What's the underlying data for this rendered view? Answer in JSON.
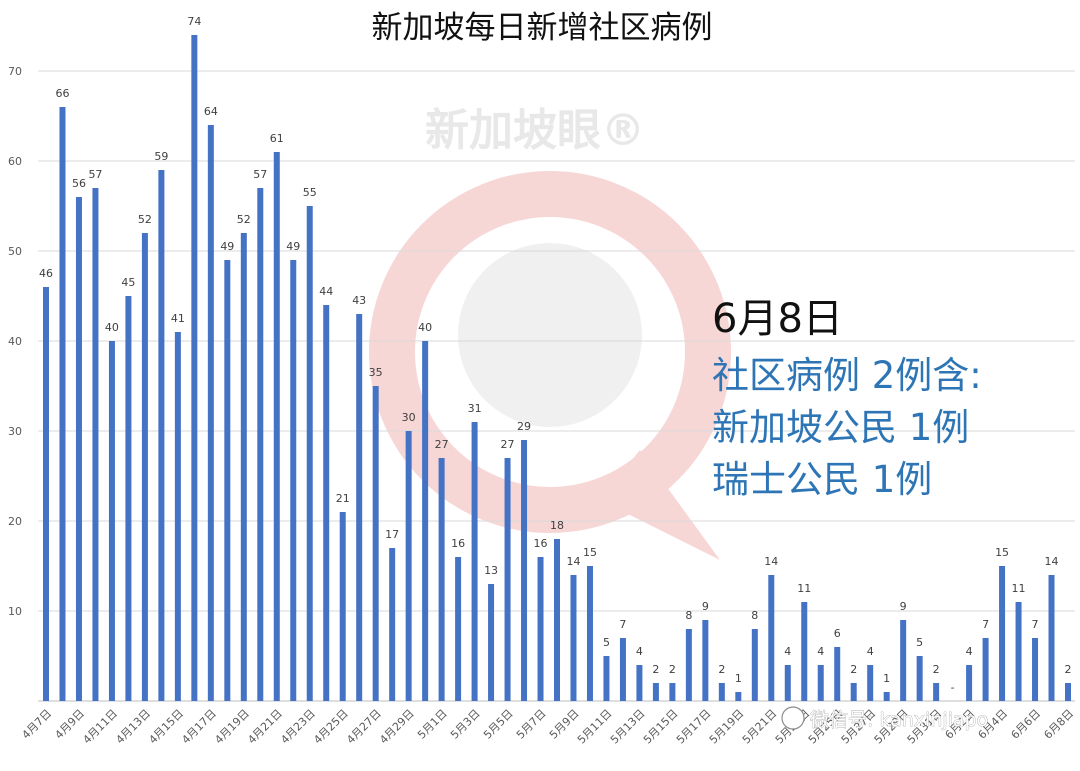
{
  "chart_data": {
    "type": "bar",
    "title": "新加坡每日新增社区病例",
    "xlabel": "",
    "ylabel": "",
    "ylim": [
      0,
      70
    ],
    "yticks": [
      10,
      20,
      30,
      40,
      50,
      60,
      70
    ],
    "grid": true,
    "legend": "none",
    "bar_color": "#4472c4",
    "categories": [
      "4月7日",
      "4月8日",
      "4月9日",
      "4月10日",
      "4月11日",
      "4月12日",
      "4月13日",
      "4月14日",
      "4月15日",
      "4月16日",
      "4月17日",
      "4月18日",
      "4月19日",
      "4月20日",
      "4月21日",
      "4月22日",
      "4月23日",
      "4月24日",
      "4月25日",
      "4月26日",
      "4月27日",
      "4月28日",
      "4月29日",
      "4月30日",
      "5月1日",
      "5月2日",
      "5月3日",
      "5月4日",
      "5月5日",
      "5月6日",
      "5月7日",
      "5月8日",
      "5月9日",
      "5月10日",
      "5月11日",
      "5月12日",
      "5月13日",
      "5月14日",
      "5月15日",
      "5月16日",
      "5月17日",
      "5月18日",
      "5月19日",
      "5月20日",
      "5月21日",
      "5月22日",
      "5月23日",
      "5月24日",
      "5月25日",
      "5月26日",
      "5月27日",
      "5月28日",
      "5月29日",
      "5月30日",
      "5月31日",
      "6月1日",
      "6月2日",
      "6月3日",
      "6月4日",
      "6月5日",
      "6月6日",
      "6月7日",
      "6月8日"
    ],
    "tick_labels": [
      "4月7日",
      "4月9日",
      "4月11日",
      "4月13日",
      "4月15日",
      "4月17日",
      "4月19日",
      "4月21日",
      "4月23日",
      "4月25日",
      "4月27日",
      "4月29日",
      "5月1日",
      "5月3日",
      "5月5日",
      "5月7日",
      "5月9日",
      "5月11日",
      "5月13日",
      "5月15日",
      "5月17日",
      "5月19日",
      "5月21日",
      "5月23日",
      "5月25日",
      "5月27日",
      "5月29日",
      "5月31日",
      "6月2日",
      "6月4日",
      "6月6日",
      "6月8日"
    ],
    "values": [
      46,
      66,
      56,
      57,
      40,
      45,
      52,
      59,
      41,
      74,
      64,
      49,
      52,
      57,
      61,
      49,
      55,
      44,
      21,
      43,
      35,
      17,
      30,
      40,
      27,
      16,
      31,
      13,
      27,
      29,
      16,
      18,
      14,
      15,
      5,
      7,
      4,
      2,
      2,
      8,
      9,
      2,
      1,
      8,
      14,
      4,
      11,
      4,
      6,
      2,
      4,
      1,
      9,
      5,
      2,
      0,
      4,
      7,
      15,
      11,
      7,
      14,
      2
    ],
    "data_labels": [
      "46",
      "66",
      "56",
      "57",
      "40",
      "45",
      "52",
      "59",
      "41",
      "74",
      "64",
      "49",
      "52",
      "57",
      "61",
      "49",
      "55",
      "44",
      "21",
      "43",
      "35",
      "17",
      "30",
      "40",
      "27",
      "16",
      "31",
      "13",
      "27",
      "29",
      "16",
      "18",
      "14",
      "15",
      "5",
      "7",
      "4",
      "2",
      "2",
      "8",
      "9",
      "2",
      "1",
      "8",
      "14",
      "4",
      "11",
      "4",
      "6",
      "2",
      "4",
      "1",
      "9",
      "5",
      "2",
      "-",
      "4",
      "7",
      "15",
      "11",
      "7",
      "14",
      "2"
    ]
  },
  "annotation": {
    "date": "6月8日",
    "lines": [
      "社区病例 2例含:",
      "新加坡公民 1例",
      "瑞士公民 1例"
    ]
  },
  "watermark": {
    "text": "新加坡眼®"
  },
  "credit": "微信号: kanxinjiapo"
}
